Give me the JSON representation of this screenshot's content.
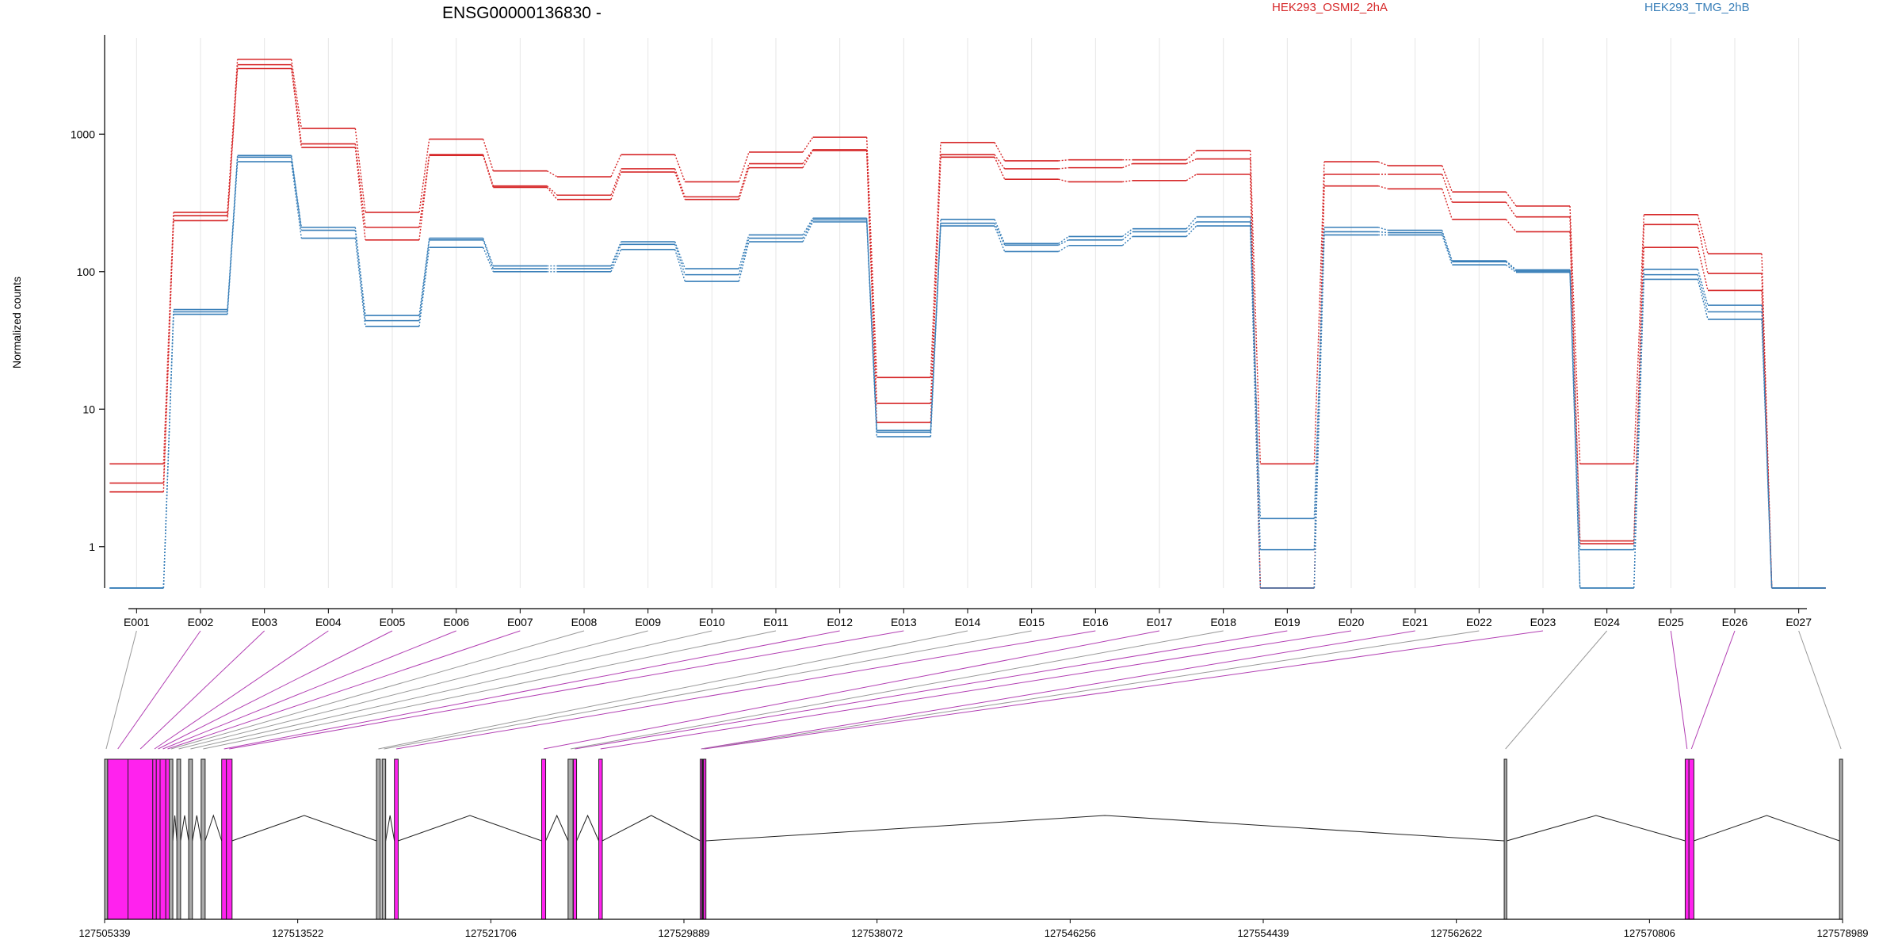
{
  "chart_data": {
    "type": "line",
    "title": "ENSG00000136830 -",
    "ylabel": "Normalized counts",
    "yscale": "log",
    "ylim": [
      0.5,
      5000
    ],
    "yticks": [
      1,
      10,
      100,
      1000
    ],
    "grid": "vertical",
    "legend": "top",
    "categories": [
      "E001",
      "E002",
      "E003",
      "E004",
      "E005",
      "E006",
      "E007",
      "E008",
      "E009",
      "E010",
      "E011",
      "E012",
      "E013",
      "E014",
      "E015",
      "E016",
      "E017",
      "E018",
      "E019",
      "E020",
      "E021",
      "E022",
      "E023",
      "E024",
      "E025",
      "E026",
      "E027"
    ],
    "groups": [
      {
        "name": "HEK293_OSMI2_2hA",
        "color": "#d62728"
      },
      {
        "name": "HEK293_TMG_2hB",
        "color": "#377eb8"
      }
    ],
    "series": [
      {
        "group": 0,
        "values": [
          4.0,
          270,
          3500,
          1100,
          270,
          920,
          540,
          490,
          710,
          450,
          740,
          950,
          17,
          870,
          640,
          650,
          650,
          760,
          4.0,
          630,
          590,
          380,
          300,
          4.0,
          260,
          135,
          0.5
        ]
      },
      {
        "group": 0,
        "values": [
          2.9,
          255,
          3200,
          850,
          210,
          710,
          420,
          360,
          560,
          350,
          610,
          770,
          11,
          710,
          560,
          570,
          610,
          660,
          0.5,
          510,
          510,
          320,
          250,
          1.1,
          220,
          97,
          0.5
        ]
      },
      {
        "group": 0,
        "values": [
          2.5,
          235,
          3000,
          800,
          170,
          700,
          410,
          335,
          530,
          335,
          570,
          760,
          8,
          680,
          470,
          450,
          460,
          510,
          0.5,
          420,
          400,
          240,
          195,
          1.05,
          150,
          73,
          0.5
        ]
      },
      {
        "group": 1,
        "values": [
          0.5,
          53,
          700,
          210,
          48,
          175,
          110,
          110,
          165,
          105,
          185,
          245,
          7,
          240,
          160,
          180,
          205,
          250,
          1.6,
          210,
          200,
          120,
          103,
          0.95,
          104,
          57,
          0.5
        ]
      },
      {
        "group": 1,
        "values": [
          0.5,
          51,
          680,
          200,
          44,
          170,
          105,
          105,
          158,
          95,
          175,
          238,
          6.8,
          225,
          156,
          170,
          195,
          230,
          0.95,
          195,
          192,
          118,
          101,
          0.5,
          95,
          51,
          0.5
        ]
      },
      {
        "group": 1,
        "values": [
          0.5,
          49,
          630,
          175,
          40,
          150,
          100,
          100,
          145,
          85,
          165,
          230,
          6.3,
          215,
          140,
          155,
          180,
          215,
          0.5,
          185,
          185,
          112,
          99,
          0.5,
          88,
          45,
          0.5
        ]
      }
    ],
    "gene_model": {
      "coordinate_ticks": [
        "127505339",
        "127513522",
        "127521706",
        "127529889",
        "127538072",
        "127546256",
        "127554439",
        "127562622",
        "127570806",
        "127578989"
      ],
      "exons": [
        {
          "label": "E001",
          "start": 127505339,
          "end": 127505470,
          "color": "#aaaaaa"
        },
        {
          "label": "E002",
          "start": 127505470,
          "end": 127506330,
          "color": "#ff22ee"
        },
        {
          "label": "E003",
          "start": 127506330,
          "end": 127507380,
          "color": "#ff22ee"
        },
        {
          "label": "E004",
          "start": 127507380,
          "end": 127507530,
          "color": "#ff22ee"
        },
        {
          "label": "E005",
          "start": 127507530,
          "end": 127507690,
          "color": "#ff22ee"
        },
        {
          "label": "E006",
          "start": 127507690,
          "end": 127507930,
          "color": "#ff22ee"
        },
        {
          "label": "E007",
          "start": 127507930,
          "end": 127508090,
          "color": "#ff22ee"
        },
        {
          "label": "E008",
          "start": 127508080,
          "end": 127508230,
          "color": "#aaaaaa"
        },
        {
          "label": "E009",
          "start": 127508400,
          "end": 127508560,
          "color": "#aaaaaa"
        },
        {
          "label": "E010",
          "start": 127508900,
          "end": 127509060,
          "color": "#aaaaaa"
        },
        {
          "label": "E011",
          "start": 127509430,
          "end": 127509600,
          "color": "#aaaaaa"
        },
        {
          "label": "E012",
          "start": 127510300,
          "end": 127510500,
          "color": "#ff22ee"
        },
        {
          "label": "E013",
          "start": 127510500,
          "end": 127510740,
          "color": "#ff22ee"
        },
        {
          "label": "E014",
          "start": 127516860,
          "end": 127517020,
          "color": "#aaaaaa"
        },
        {
          "label": "E015",
          "start": 127517100,
          "end": 127517250,
          "color": "#aaaaaa"
        },
        {
          "label": "E016",
          "start": 127517620,
          "end": 127517780,
          "color": "#ff22ee"
        },
        {
          "label": "E017",
          "start": 127523860,
          "end": 127524030,
          "color": "#ff22ee"
        },
        {
          "label": "E018",
          "start": 127524980,
          "end": 127525190,
          "color": "#aaaaaa"
        },
        {
          "label": "E019",
          "start": 127525200,
          "end": 127525340,
          "color": "#ff22ee"
        },
        {
          "label": "E020",
          "start": 127526280,
          "end": 127526430,
          "color": "#ff22ee"
        },
        {
          "label": "E021",
          "start": 127530580,
          "end": 127530660,
          "color": "#ff22ee"
        },
        {
          "label": "E022",
          "start": 127530650,
          "end": 127530730,
          "color": "#222222"
        },
        {
          "label": "E023",
          "start": 127530720,
          "end": 127530800,
          "color": "#ff22ee"
        },
        {
          "label": "E024",
          "start": 127564650,
          "end": 127564760,
          "color": "#aaaaaa"
        },
        {
          "label": "E025",
          "start": 127572320,
          "end": 127572480,
          "color": "#ff22ee"
        },
        {
          "label": "E026",
          "start": 127572480,
          "end": 127572690,
          "color": "#ff22ee"
        },
        {
          "label": "E027",
          "start": 127578860,
          "end": 127578989,
          "color": "#aaaaaa"
        }
      ]
    }
  }
}
